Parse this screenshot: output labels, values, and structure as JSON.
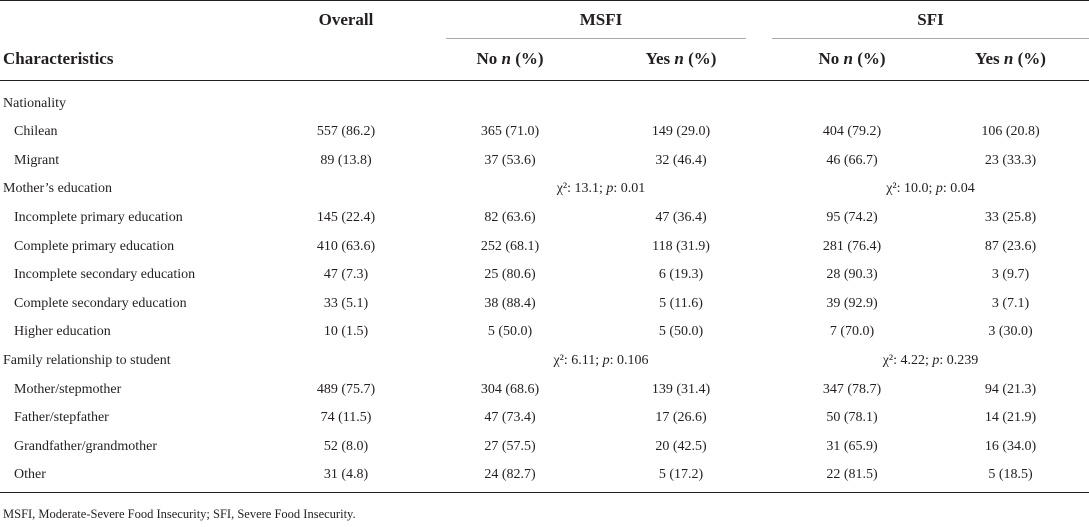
{
  "header": {
    "overall": "Overall",
    "msfi": "MSFI",
    "sfi": "SFI",
    "characteristics": "Characteristics",
    "no_label": "No ",
    "yes_label": "Yes ",
    "n_label": "n",
    "pct_label": " (%)"
  },
  "sections": [
    {
      "title": "Nationality",
      "msfi_stat": "",
      "sfi_stat": "",
      "rows": [
        {
          "label": "Chilean",
          "overall": "557 (86.2)",
          "msfi_no": "365 (71.0)",
          "msfi_yes": "149 (29.0)",
          "sfi_no": "404 (79.2)",
          "sfi_yes": "106 (20.8)"
        },
        {
          "label": "Migrant",
          "overall": "89 (13.8)",
          "msfi_no": "37 (53.6)",
          "msfi_yes": "32 (46.4)",
          "sfi_no": "46 (66.7)",
          "sfi_yes": "23 (33.3)"
        }
      ]
    },
    {
      "title": "Mother’s education",
      "msfi_stat": "χ²: 13.1; p: 0.01",
      "sfi_stat": "χ²: 10.0; p: 0.04",
      "rows": [
        {
          "label": "Incomplete primary education",
          "overall": "145 (22.4)",
          "msfi_no": "82 (63.6)",
          "msfi_yes": "47 (36.4)",
          "sfi_no": "95 (74.2)",
          "sfi_yes": "33 (25.8)"
        },
        {
          "label": "Complete primary education",
          "overall": "410 (63.6)",
          "msfi_no": "252 (68.1)",
          "msfi_yes": "118 (31.9)",
          "sfi_no": "281 (76.4)",
          "sfi_yes": "87 (23.6)"
        },
        {
          "label": "Incomplete secondary education",
          "overall": "47 (7.3)",
          "msfi_no": "25 (80.6)",
          "msfi_yes": "6 (19.3)",
          "sfi_no": "28 (90.3)",
          "sfi_yes": "3 (9.7)"
        },
        {
          "label": "Complete secondary education",
          "overall": "33 (5.1)",
          "msfi_no": "38 (88.4)",
          "msfi_yes": "5 (11.6)",
          "sfi_no": "39 (92.9)",
          "sfi_yes": "3 (7.1)"
        },
        {
          "label": "Higher education",
          "overall": "10 (1.5)",
          "msfi_no": "5 (50.0)",
          "msfi_yes": "5 (50.0)",
          "sfi_no": "7 (70.0)",
          "sfi_yes": "3 (30.0)"
        }
      ]
    },
    {
      "title": "Family relationship to student",
      "msfi_stat": "χ²: 6.11; p: 0.106",
      "sfi_stat": "χ²: 4.22; p: 0.239",
      "rows": [
        {
          "label": "Mother/stepmother",
          "overall": "489 (75.7)",
          "msfi_no": "304 (68.6)",
          "msfi_yes": "139 (31.4)",
          "sfi_no": "347 (78.7)",
          "sfi_yes": "94 (21.3)"
        },
        {
          "label": "Father/stepfather",
          "overall": "74 (11.5)",
          "msfi_no": "47 (73.4)",
          "msfi_yes": "17 (26.6)",
          "sfi_no": "50 (78.1)",
          "sfi_yes": "14 (21.9)"
        },
        {
          "label": "Grandfather/grandmother",
          "overall": "52 (8.0)",
          "msfi_no": "27 (57.5)",
          "msfi_yes": "20 (42.5)",
          "sfi_no": "31 (65.9)",
          "sfi_yes": "16 (34.0)"
        },
        {
          "label": "Other",
          "overall": "31 (4.8)",
          "msfi_no": "24 (82.7)",
          "msfi_yes": "5 (17.2)",
          "sfi_no": "22 (81.5)",
          "sfi_yes": "5 (18.5)"
        }
      ]
    }
  ],
  "footnote": "MSFI, Moderate-Severe Food Insecurity; SFI, Severe Food Insecurity."
}
